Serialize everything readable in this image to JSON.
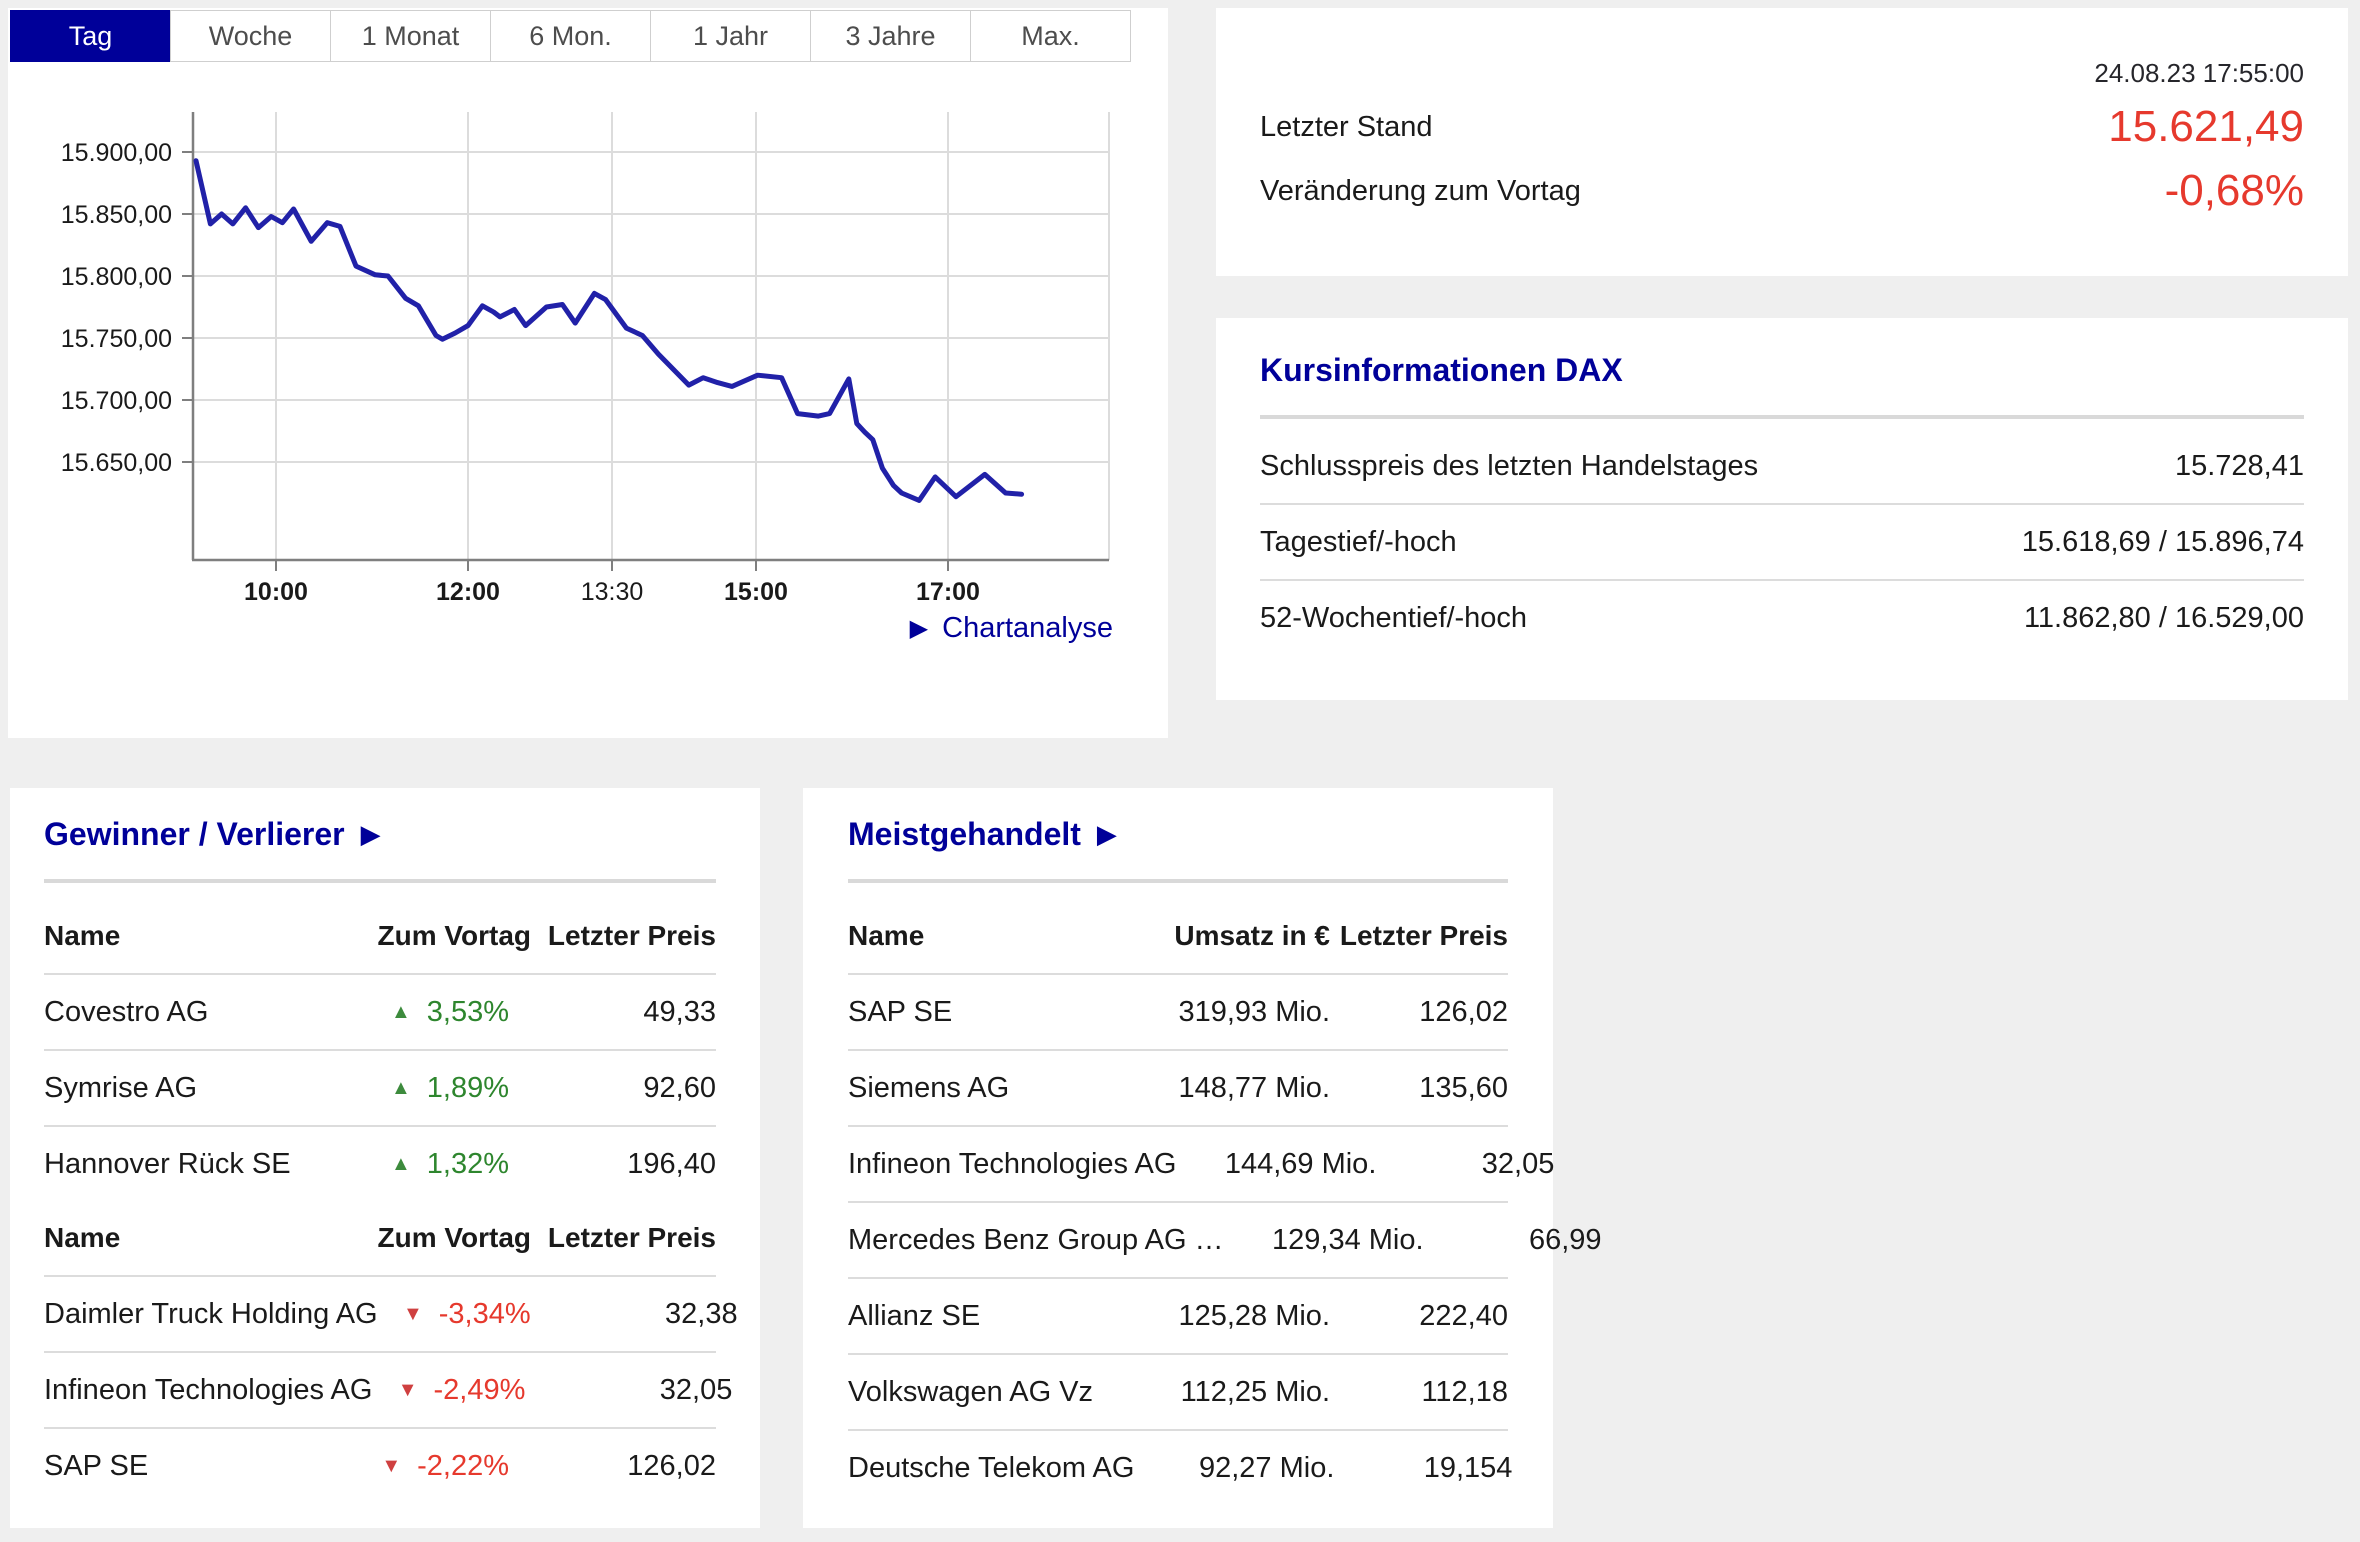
{
  "colors": {
    "navy": "#000099",
    "chart_line": "#2121a8",
    "red": "#e6392d",
    "red_icon": "#cf4040",
    "green": "#2e862e",
    "green_icon": "#3d8b3d",
    "grid": "#dcdcdc",
    "axis": "#7f7f7f",
    "divider_thick": "#d9d9d9",
    "divider_thin": "#dcdcdc",
    "tab_inactive_text": "#4d4d4d",
    "text": "#1a1a1a",
    "bg": "#efefef"
  },
  "tabs": {
    "items": [
      {
        "label": "Tag",
        "active": true
      },
      {
        "label": "Woche",
        "active": false
      },
      {
        "label": "1 Monat",
        "active": false
      },
      {
        "label": "6 Mon.",
        "active": false
      },
      {
        "label": "1 Jahr",
        "active": false
      },
      {
        "label": "3 Jahre",
        "active": false
      },
      {
        "label": "Max.",
        "active": false
      }
    ]
  },
  "chartanalyse": {
    "arrow": "▶",
    "label": "Chartanalyse"
  },
  "chart_data": {
    "type": "line",
    "title": "DAX Tag (Intraday)",
    "legend": false,
    "grid": true,
    "xlabel": "",
    "ylabel": "",
    "x_ticks": [
      {
        "label": "10:00",
        "bold": true
      },
      {
        "label": "12:00",
        "bold": true
      },
      {
        "label": "13:30",
        "bold": false
      },
      {
        "label": "15:00",
        "bold": true
      },
      {
        "label": "17:00",
        "bold": true
      }
    ],
    "y_ticks": [
      {
        "label": "15.900,00",
        "value": 15900
      },
      {
        "label": "15.850,00",
        "value": 15850
      },
      {
        "label": "15.800,00",
        "value": 15800
      },
      {
        "label": "15.750,00",
        "value": 15750
      },
      {
        "label": "15.700,00",
        "value": 15700
      },
      {
        "label": "15.650,00",
        "value": 15650
      }
    ],
    "ylim": [
      15575,
      15930
    ],
    "series": [
      {
        "name": "DAX",
        "points": [
          [
            "09:10",
            15893
          ],
          [
            "09:19",
            15842
          ],
          [
            "09:26",
            15850
          ],
          [
            "09:33",
            15842
          ],
          [
            "09:41",
            15855
          ],
          [
            "09:49",
            15839
          ],
          [
            "09:57",
            15848
          ],
          [
            "10:04",
            15843
          ],
          [
            "10:11",
            15854
          ],
          [
            "10:22",
            15828
          ],
          [
            "10:32",
            15843
          ],
          [
            "10:40",
            15840
          ],
          [
            "10:50",
            15808
          ],
          [
            "11:02",
            15801
          ],
          [
            "11:10",
            15800
          ],
          [
            "11:21",
            15782
          ],
          [
            "11:29",
            15776
          ],
          [
            "11:40",
            15752
          ],
          [
            "11:44",
            15749
          ],
          [
            "11:52",
            15754
          ],
          [
            "12:00",
            15760
          ],
          [
            "12:09",
            15776
          ],
          [
            "12:16",
            15771
          ],
          [
            "12:20",
            15767
          ],
          [
            "12:29",
            15773
          ],
          [
            "12:36",
            15760
          ],
          [
            "12:49",
            15775
          ],
          [
            "12:59",
            15777
          ],
          [
            "13:07",
            15762
          ],
          [
            "13:19",
            15786
          ],
          [
            "13:26",
            15781
          ],
          [
            "13:39",
            15758
          ],
          [
            "13:49",
            15752
          ],
          [
            "13:59",
            15737
          ],
          [
            "14:18",
            15712
          ],
          [
            "14:27",
            15718
          ],
          [
            "14:36",
            15714
          ],
          [
            "14:45",
            15711
          ],
          [
            "15:01",
            15720
          ],
          [
            "15:16",
            15718
          ],
          [
            "15:26",
            15689
          ],
          [
            "15:39",
            15687
          ],
          [
            "15:46",
            15689
          ],
          [
            "15:58",
            15717
          ],
          [
            "16:03",
            15681
          ],
          [
            "16:08",
            15674
          ],
          [
            "16:13",
            15668
          ],
          [
            "16:19",
            15645
          ],
          [
            "16:26",
            15631
          ],
          [
            "16:31",
            15625
          ],
          [
            "16:42",
            15619
          ],
          [
            "16:52",
            15638
          ],
          [
            "17:05",
            15622
          ],
          [
            "17:23",
            15640
          ],
          [
            "17:36",
            15625
          ],
          [
            "17:46",
            15624
          ]
        ]
      }
    ]
  },
  "quote_panel": {
    "timestamp": "24.08.23 17:55:00",
    "rows": [
      {
        "label": "Letzter Stand",
        "value": "15.621,49"
      },
      {
        "label": "Veränderung zum Vortag",
        "value": "-0,68%"
      }
    ]
  },
  "kursinfo": {
    "title": "Kursinformationen DAX",
    "rows": [
      {
        "label": "Schlusspreis des letzten Handelstages",
        "value": "15.728,41"
      },
      {
        "label": "Tagestief/-hoch",
        "value": "15.618,69 / 15.896,74"
      },
      {
        "label": "52-Wochentief/-hoch",
        "value": "11.862,80 / 16.529,00"
      }
    ]
  },
  "gewinner": {
    "title": "Gewinner / Verlierer",
    "arrow": "▶",
    "columns": [
      "Name",
      "Zum Vortag",
      "Letzter Preis"
    ],
    "gainers": [
      {
        "name": "Covestro AG",
        "dir": "up",
        "change": "3,53%",
        "price": "49,33"
      },
      {
        "name": "Symrise AG",
        "dir": "up",
        "change": "1,89%",
        "price": "92,60"
      },
      {
        "name": "Hannover Rück SE",
        "dir": "up",
        "change": "1,32%",
        "price": "196,40"
      }
    ],
    "losers": [
      {
        "name": "Daimler Truck Holding AG",
        "dir": "down",
        "change": "-3,34%",
        "price": "32,38"
      },
      {
        "name": "Infineon Technologies AG",
        "dir": "down",
        "change": "-2,49%",
        "price": "32,05"
      },
      {
        "name": "SAP SE",
        "dir": "down",
        "change": "-2,22%",
        "price": "126,02"
      }
    ]
  },
  "meistgehandelt": {
    "title": "Meistgehandelt",
    "arrow": "▶",
    "columns": [
      "Name",
      "Umsatz in €",
      "Letzter Preis"
    ],
    "rows": [
      {
        "name": "SAP SE",
        "umsatz": "319,93 Mio.",
        "price": "126,02"
      },
      {
        "name": "Siemens AG",
        "umsatz": "148,77 Mio.",
        "price": "135,60"
      },
      {
        "name": "Infineon Technologies AG",
        "umsatz": "144,69 Mio.",
        "price": "32,05"
      },
      {
        "name": "Mercedes Benz Group AG …",
        "umsatz": "129,34 Mio.",
        "price": "66,99"
      },
      {
        "name": "Allianz SE",
        "umsatz": "125,28 Mio.",
        "price": "222,40"
      },
      {
        "name": "Volkswagen AG Vz",
        "umsatz": "112,25 Mio.",
        "price": "112,18"
      },
      {
        "name": "Deutsche Telekom AG",
        "umsatz": "92,27 Mio.",
        "price": "19,154"
      }
    ]
  }
}
